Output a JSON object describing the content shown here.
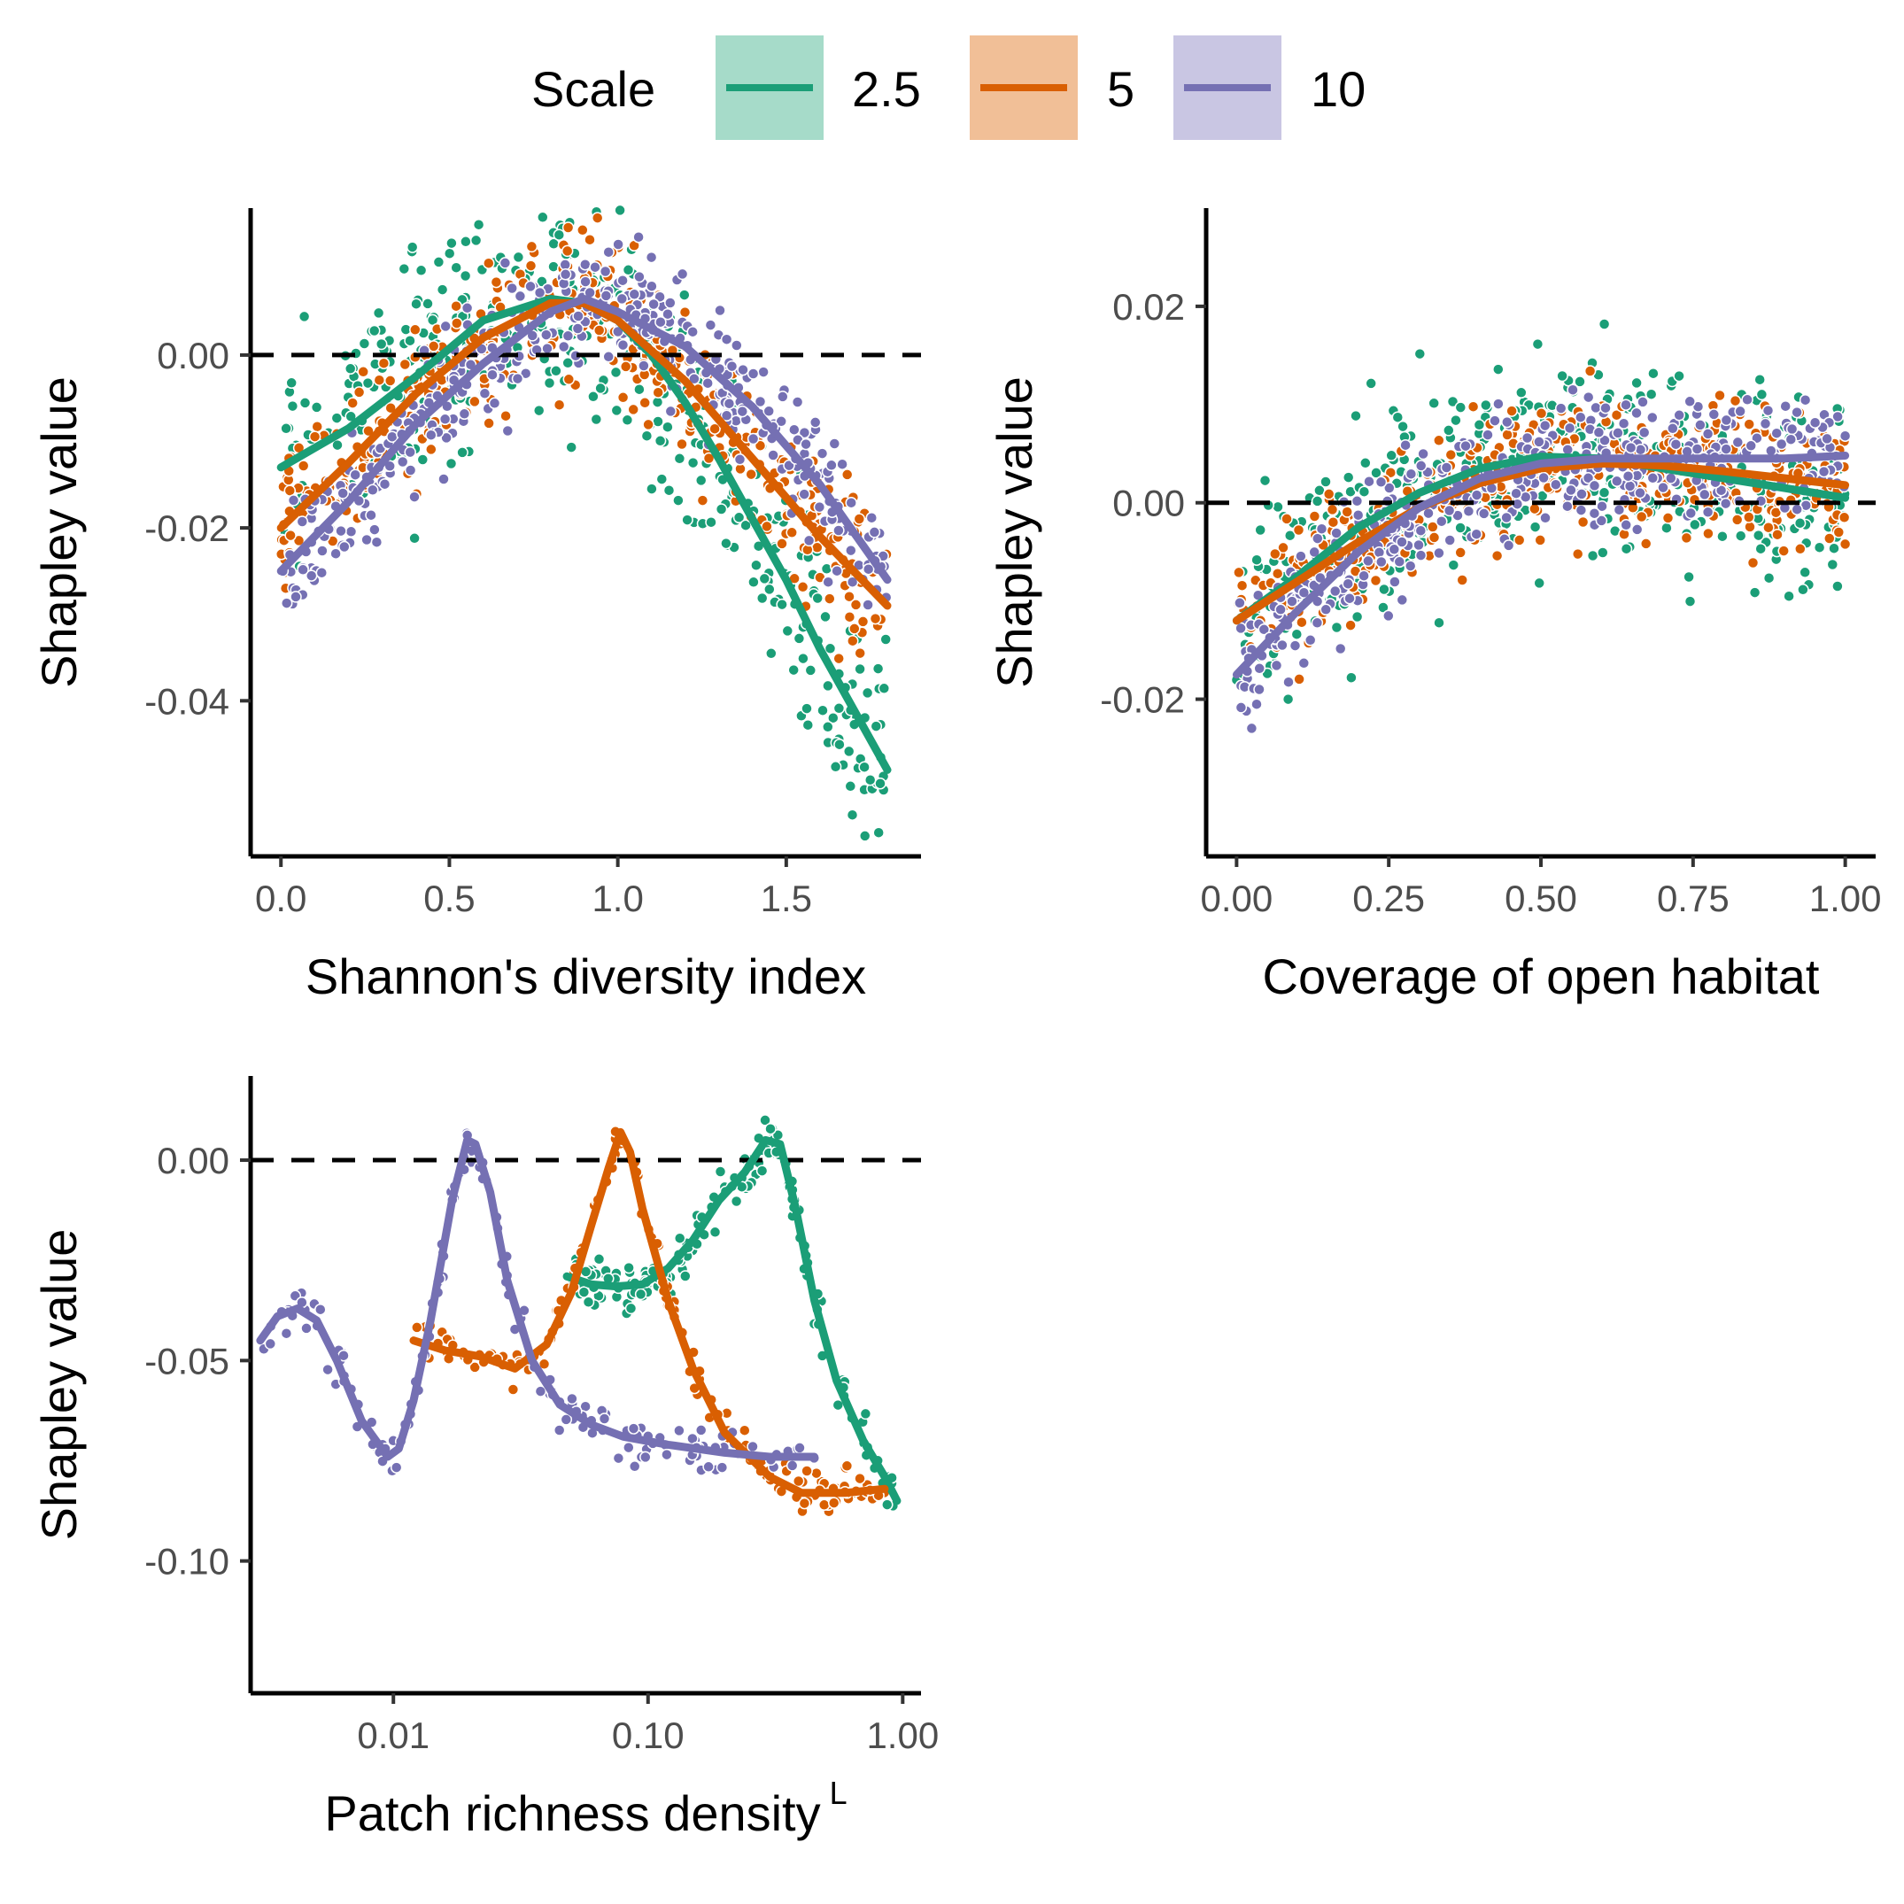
{
  "legend": {
    "title": "Scale",
    "entries": [
      {
        "label": "2.5",
        "color": "#1b9e77",
        "fill": "#a6dbc9"
      },
      {
        "label": "5",
        "color": "#d95f02",
        "fill": "#f1bf97"
      },
      {
        "label": "10",
        "color": "#7570b3",
        "fill": "#c9c6e3"
      }
    ]
  },
  "chart_data": [
    {
      "type": "scatter",
      "xlabel": "Shannon's diversity index",
      "ylabel": "Shapley value",
      "xlim": [
        -0.09,
        1.9
      ],
      "ylim": [
        -0.058,
        0.017
      ],
      "xticks": [
        0.0,
        0.5,
        1.0,
        1.5
      ],
      "xtick_labels": [
        "0.0",
        "0.5",
        "1.0",
        "1.5"
      ],
      "yticks": [
        0.0,
        -0.02,
        -0.04
      ],
      "ytick_labels": [
        "0.00",
        "-0.02",
        "-0.04"
      ],
      "reference_line_y": 0,
      "series": [
        {
          "name": "2.5",
          "color": "#1b9e77",
          "smooth": [
            [
              0.0,
              -0.013
            ],
            [
              0.2,
              -0.0085
            ],
            [
              0.4,
              -0.0025
            ],
            [
              0.6,
              0.004
            ],
            [
              0.8,
              0.0065
            ],
            [
              0.9,
              0.006
            ],
            [
              1.0,
              0.004
            ],
            [
              1.1,
              0.0
            ],
            [
              1.2,
              -0.0055
            ],
            [
              1.3,
              -0.012
            ],
            [
              1.4,
              -0.019
            ],
            [
              1.5,
              -0.026
            ],
            [
              1.6,
              -0.034
            ],
            [
              1.7,
              -0.041
            ],
            [
              1.8,
              -0.048
            ]
          ],
          "band": [
            0.07,
            -0.004,
            1.8,
            0.014,
            0.004
          ]
        },
        {
          "name": "5",
          "color": "#d95f02",
          "smooth": [
            [
              0.0,
              -0.02
            ],
            [
              0.2,
              -0.0125
            ],
            [
              0.4,
              -0.0045
            ],
            [
              0.6,
              0.002
            ],
            [
              0.8,
              0.006
            ],
            [
              0.9,
              0.006
            ],
            [
              1.0,
              0.004
            ],
            [
              1.2,
              -0.003
            ],
            [
              1.4,
              -0.012
            ],
            [
              1.6,
              -0.021
            ],
            [
              1.8,
              -0.029
            ]
          ],
          "band": [
            0.045,
            0.0,
            1.8,
            0.009,
            0.003
          ]
        },
        {
          "name": "10",
          "color": "#7570b3",
          "smooth": [
            [
              0.0,
              -0.025
            ],
            [
              0.2,
              -0.017
            ],
            [
              0.4,
              -0.008
            ],
            [
              0.6,
              -0.001
            ],
            [
              0.8,
              0.005
            ],
            [
              0.9,
              0.0065
            ],
            [
              1.0,
              0.005
            ],
            [
              1.2,
              0.001
            ],
            [
              1.4,
              -0.006
            ],
            [
              1.6,
              -0.015
            ],
            [
              1.8,
              -0.026
            ]
          ],
          "band": [
            0.028,
            0.0,
            1.82,
            0.007,
            0.003
          ]
        }
      ]
    },
    {
      "type": "scatter",
      "xlabel": "Coverage of open habitat",
      "ylabel": "Shapley value",
      "xlim": [
        -0.05,
        1.05
      ],
      "ylim": [
        -0.036,
        0.03
      ],
      "xticks": [
        0.0,
        0.25,
        0.5,
        0.75,
        1.0
      ],
      "xtick_labels": [
        "0.00",
        "0.25",
        "0.50",
        "0.75",
        "1.00"
      ],
      "yticks": [
        0.02,
        0.0,
        -0.02
      ],
      "ytick_labels": [
        "0.02",
        "0.00",
        "-0.02"
      ],
      "reference_line_y": 0,
      "series": [
        {
          "name": "2.5",
          "color": "#1b9e77",
          "smooth": [
            [
              0.0,
              -0.012
            ],
            [
              0.1,
              -0.0075
            ],
            [
              0.2,
              -0.0025
            ],
            [
              0.3,
              0.001
            ],
            [
              0.4,
              0.0035
            ],
            [
              0.5,
              0.0047
            ],
            [
              0.6,
              0.0045
            ],
            [
              0.7,
              0.0035
            ],
            [
              0.8,
              0.0025
            ],
            [
              0.9,
              0.0015
            ],
            [
              1.0,
              0.0005
            ]
          ],
          "band": [
            0.0,
            0.0,
            1.0,
            0.01,
            0.005
          ]
        },
        {
          "name": "5",
          "color": "#d95f02",
          "smooth": [
            [
              0.0,
              -0.012
            ],
            [
              0.1,
              -0.008
            ],
            [
              0.2,
              -0.004
            ],
            [
              0.3,
              -0.0005
            ],
            [
              0.4,
              0.002
            ],
            [
              0.5,
              0.0035
            ],
            [
              0.6,
              0.004
            ],
            [
              0.7,
              0.0038
            ],
            [
              0.8,
              0.0032
            ],
            [
              0.9,
              0.0025
            ],
            [
              1.0,
              0.0018
            ]
          ],
          "band": [
            0.0,
            0.0,
            1.0,
            0.007,
            0.004
          ]
        },
        {
          "name": "10",
          "color": "#7570b3",
          "smooth": [
            [
              0.0,
              -0.0175
            ],
            [
              0.1,
              -0.011
            ],
            [
              0.2,
              -0.005
            ],
            [
              0.3,
              -0.0005
            ],
            [
              0.4,
              0.0025
            ],
            [
              0.5,
              0.004
            ],
            [
              0.6,
              0.0045
            ],
            [
              0.7,
              0.0045
            ],
            [
              0.8,
              0.0045
            ],
            [
              0.9,
              0.0045
            ],
            [
              1.0,
              0.0048
            ]
          ],
          "band": [
            0.0,
            0.0,
            1.0,
            0.006,
            0.004
          ]
        }
      ]
    },
    {
      "type": "scatter",
      "x_scale": "log",
      "xlabel": "Patch richness density",
      "xlabel_superscript": "L",
      "ylabel": "Shapley value",
      "xlim": [
        0.00275,
        1.18
      ],
      "ylim": [
        -0.133,
        0.021
      ],
      "xticks": [
        0.01,
        0.1,
        1.0
      ],
      "xtick_labels": [
        "0.01",
        "0.10",
        "1.00"
      ],
      "yticks": [
        0.0,
        -0.05,
        -0.1
      ],
      "ytick_labels": [
        "0.00",
        "-0.05",
        "-0.10"
      ],
      "reference_line_y": 0,
      "series": [
        {
          "name": "2.5",
          "color": "#1b9e77",
          "smooth": [
            [
              0.048,
              -0.029
            ],
            [
              0.06,
              -0.031
            ],
            [
              0.075,
              -0.0315
            ],
            [
              0.095,
              -0.031
            ],
            [
              0.12,
              -0.027
            ],
            [
              0.15,
              -0.02
            ],
            [
              0.19,
              -0.01
            ],
            [
              0.24,
              -0.003
            ],
            [
              0.29,
              0.005
            ],
            [
              0.33,
              0.004
            ],
            [
              0.38,
              -0.012
            ],
            [
              0.45,
              -0.035
            ],
            [
              0.55,
              -0.055
            ],
            [
              0.7,
              -0.07
            ],
            [
              0.85,
              -0.079
            ],
            [
              0.95,
              -0.085
            ]
          ],
          "band": [
            0.048,
            0.0,
            0.95,
            0.006,
            0.003
          ]
        },
        {
          "name": "5",
          "color": "#d95f02",
          "smooth": [
            [
              0.012,
              -0.045
            ],
            [
              0.016,
              -0.0475
            ],
            [
              0.022,
              -0.049
            ],
            [
              0.03,
              -0.052
            ],
            [
              0.04,
              -0.046
            ],
            [
              0.05,
              -0.033
            ],
            [
              0.06,
              -0.016
            ],
            [
              0.07,
              -0.002
            ],
            [
              0.078,
              0.007
            ],
            [
              0.085,
              0.002
            ],
            [
              0.095,
              -0.012
            ],
            [
              0.12,
              -0.035
            ],
            [
              0.15,
              -0.052
            ],
            [
              0.2,
              -0.068
            ],
            [
              0.3,
              -0.079
            ],
            [
              0.4,
              -0.083
            ],
            [
              0.6,
              -0.083
            ],
            [
              0.85,
              -0.082
            ]
          ],
          "band": [
            0.012,
            0.0,
            0.85,
            0.005,
            0.003
          ]
        },
        {
          "name": "10",
          "color": "#7570b3",
          "smooth": [
            [
              0.003,
              -0.045
            ],
            [
              0.0035,
              -0.039
            ],
            [
              0.0042,
              -0.037
            ],
            [
              0.005,
              -0.04
            ],
            [
              0.006,
              -0.05
            ],
            [
              0.0075,
              -0.065
            ],
            [
              0.0095,
              -0.074
            ],
            [
              0.0105,
              -0.072
            ],
            [
              0.012,
              -0.06
            ],
            [
              0.014,
              -0.04
            ],
            [
              0.017,
              -0.01
            ],
            [
              0.0195,
              0.005
            ],
            [
              0.021,
              0.004
            ],
            [
              0.024,
              -0.008
            ],
            [
              0.028,
              -0.03
            ],
            [
              0.035,
              -0.05
            ],
            [
              0.045,
              -0.061
            ],
            [
              0.06,
              -0.066
            ],
            [
              0.08,
              -0.069
            ],
            [
              0.12,
              -0.071
            ],
            [
              0.2,
              -0.073
            ],
            [
              0.3,
              -0.074
            ],
            [
              0.45,
              -0.074
            ]
          ],
          "band": [
            0.003,
            0.0,
            0.45,
            0.006,
            0.003
          ]
        }
      ]
    }
  ]
}
